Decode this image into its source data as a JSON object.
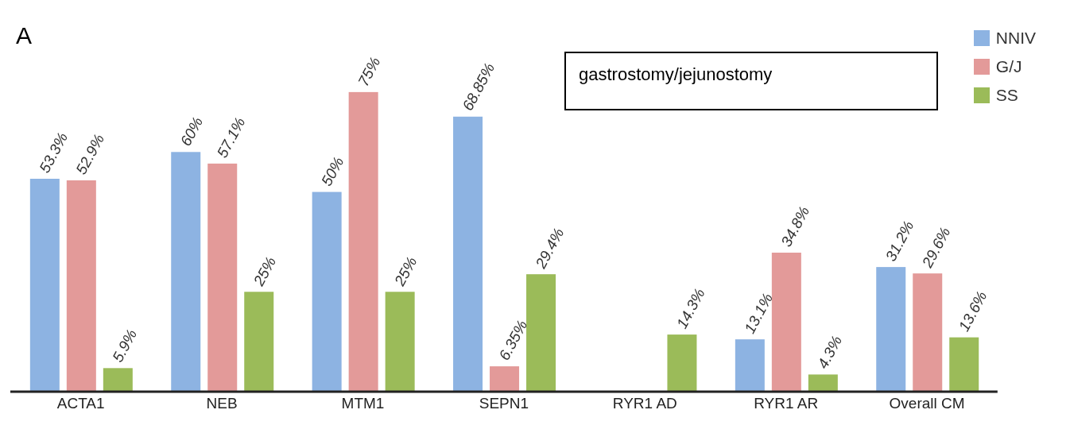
{
  "chart_data": {
    "type": "bar",
    "title": "A",
    "annotations": [
      "gastrostomy/jejunostomy"
    ],
    "categories": [
      "ACTA1",
      "NEB",
      "MTM1",
      "SEPN1",
      "RYR1 AD",
      "RYR1 AR",
      "Overall CM"
    ],
    "series": [
      {
        "name": "NNIV",
        "color": "#8db3e2",
        "values": [
          53.3,
          60,
          50,
          68.85,
          null,
          13.1,
          31.2
        ],
        "value_labels": [
          "53.3%",
          "60%",
          "50%",
          "68.85%",
          null,
          "13.1%",
          "31.2%"
        ]
      },
      {
        "name": "G/J",
        "color": "#e39a99",
        "values": [
          52.9,
          57.1,
          75,
          6.35,
          null,
          34.8,
          29.6
        ],
        "value_labels": [
          "52.9%",
          "57.1%",
          "75%",
          "6.35%",
          null,
          "34.8%",
          "29.6%"
        ]
      },
      {
        "name": "SS",
        "color": "#9bbb59",
        "values": [
          5.9,
          25,
          25,
          29.4,
          14.3,
          4.3,
          13.6
        ],
        "value_labels": [
          "5.9%",
          "25%",
          "25%",
          "29.4%",
          "14.3%",
          "4.3%",
          "13.6%"
        ]
      }
    ],
    "legend": "top right"
  }
}
